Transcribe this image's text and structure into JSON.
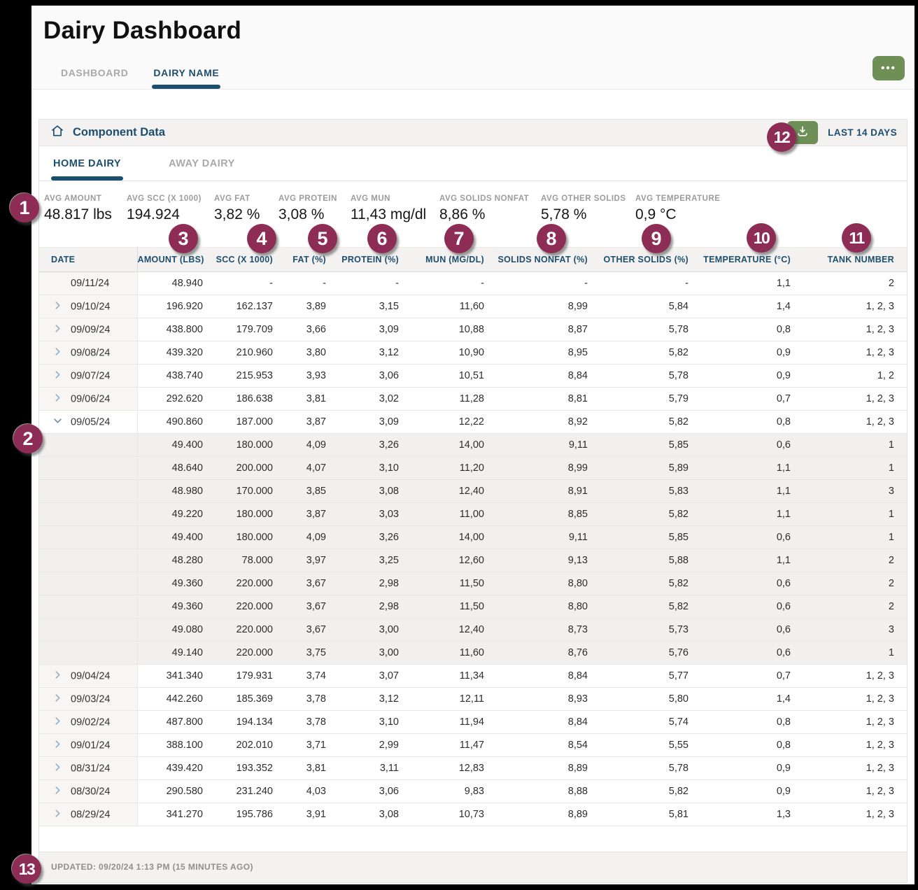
{
  "page": {
    "title": "Dairy Dashboard",
    "tabs": [
      {
        "label": "DASHBOARD",
        "active": false
      },
      {
        "label": "DAIRY NAME",
        "active": true
      }
    ],
    "more_button_label": "•••"
  },
  "panel": {
    "title": "Component Data",
    "range_label": "LAST 14 DAYS",
    "tabs": [
      {
        "label": "HOME DAIRY",
        "active": true
      },
      {
        "label": "AWAY DAIRY",
        "active": false
      }
    ],
    "stats": [
      {
        "label": "AVG AMOUNT",
        "value": "48.817 lbs"
      },
      {
        "label": "AVG SCC (X 1000)",
        "value": "194.924"
      },
      {
        "label": "AVG FAT",
        "value": "3,82 %"
      },
      {
        "label": "AVG PROTEIN",
        "value": "3,08 %"
      },
      {
        "label": "AVG MUN",
        "value": "11,43 mg/dl"
      },
      {
        "label": "AVG SOLIDS NONFAT",
        "value": "8,86 %"
      },
      {
        "label": "AVG OTHER SOLIDS",
        "value": "5,78 %"
      },
      {
        "label": "AVG TEMPERATURE",
        "value": "0,9 °C"
      }
    ],
    "table": {
      "columns": [
        "DATE",
        "AMOUNT (LBS)",
        "SCC (X 1000)",
        "FAT (%)",
        "PROTEIN (%)",
        "MUN (MG/DL)",
        "SOLIDS NONFAT (%)",
        "OTHER SOLIDS (%)",
        "TEMPERATURE (°C)",
        "TANK NUMBER"
      ],
      "rows": [
        {
          "type": "day",
          "expandable": false,
          "expanded": false,
          "date": "09/11/24",
          "cells": [
            "48.940",
            "-",
            "-",
            "-",
            "-",
            "-",
            "-",
            "1,1",
            "2"
          ]
        },
        {
          "type": "day",
          "expandable": true,
          "expanded": false,
          "date": "09/10/24",
          "cells": [
            "196.920",
            "162.137",
            "3,89",
            "3,15",
            "11,60",
            "8,99",
            "5,84",
            "1,4",
            "1, 2, 3"
          ]
        },
        {
          "type": "day",
          "expandable": true,
          "expanded": false,
          "date": "09/09/24",
          "cells": [
            "438.800",
            "179.709",
            "3,66",
            "3,09",
            "10,88",
            "8,87",
            "5,78",
            "0,8",
            "1, 2, 3"
          ]
        },
        {
          "type": "day",
          "expandable": true,
          "expanded": false,
          "date": "09/08/24",
          "cells": [
            "439.320",
            "210.960",
            "3,80",
            "3,12",
            "10,90",
            "8,95",
            "5,82",
            "0,9",
            "1, 2, 3"
          ]
        },
        {
          "type": "day",
          "expandable": true,
          "expanded": false,
          "date": "09/07/24",
          "cells": [
            "438.740",
            "215.953",
            "3,93",
            "3,06",
            "10,51",
            "8,84",
            "5,78",
            "0,9",
            "1, 2"
          ]
        },
        {
          "type": "day",
          "expandable": true,
          "expanded": false,
          "date": "09/06/24",
          "cells": [
            "292.620",
            "186.638",
            "3,81",
            "3,02",
            "11,28",
            "8,81",
            "5,79",
            "0,7",
            "1, 2, 3"
          ]
        },
        {
          "type": "day",
          "expandable": true,
          "expanded": true,
          "date": "09/05/24",
          "cells": [
            "490.860",
            "187.000",
            "3,87",
            "3,09",
            "12,22",
            "8,92",
            "5,82",
            "0,8",
            "1, 2, 3"
          ]
        },
        {
          "type": "detail",
          "expandable": false,
          "expanded": false,
          "cells": [
            "49.400",
            "180.000",
            "4,09",
            "3,26",
            "14,00",
            "9,11",
            "5,85",
            "0,6",
            "1"
          ]
        },
        {
          "type": "detail",
          "expandable": false,
          "expanded": false,
          "cells": [
            "48.640",
            "200.000",
            "4,07",
            "3,10",
            "11,20",
            "8,99",
            "5,89",
            "1,1",
            "1"
          ]
        },
        {
          "type": "detail",
          "expandable": false,
          "expanded": false,
          "cells": [
            "48.980",
            "170.000",
            "3,85",
            "3,08",
            "12,40",
            "8,91",
            "5,83",
            "1,1",
            "3"
          ]
        },
        {
          "type": "detail",
          "expandable": false,
          "expanded": false,
          "cells": [
            "49.220",
            "180.000",
            "3,87",
            "3,03",
            "11,00",
            "8,85",
            "5,82",
            "1,1",
            "1"
          ]
        },
        {
          "type": "detail",
          "expandable": false,
          "expanded": false,
          "cells": [
            "49.400",
            "180.000",
            "4,09",
            "3,26",
            "14,00",
            "9,11",
            "5,85",
            "0,6",
            "1"
          ]
        },
        {
          "type": "detail",
          "expandable": false,
          "expanded": false,
          "cells": [
            "48.280",
            "78.000",
            "3,97",
            "3,25",
            "12,60",
            "9,13",
            "5,88",
            "1,1",
            "2"
          ]
        },
        {
          "type": "detail",
          "expandable": false,
          "expanded": false,
          "cells": [
            "49.360",
            "220.000",
            "3,67",
            "2,98",
            "11,50",
            "8,80",
            "5,82",
            "0,6",
            "2"
          ]
        },
        {
          "type": "detail",
          "expandable": false,
          "expanded": false,
          "cells": [
            "49.360",
            "220.000",
            "3,67",
            "2,98",
            "11,50",
            "8,80",
            "5,82",
            "0,6",
            "2"
          ]
        },
        {
          "type": "detail",
          "expandable": false,
          "expanded": false,
          "cells": [
            "49.080",
            "220.000",
            "3,67",
            "3,00",
            "12,40",
            "8,73",
            "5,73",
            "0,6",
            "3"
          ]
        },
        {
          "type": "detail",
          "expandable": false,
          "expanded": false,
          "cells": [
            "49.140",
            "220.000",
            "3,75",
            "3,00",
            "11,60",
            "8,76",
            "5,76",
            "0,6",
            "1"
          ]
        },
        {
          "type": "day",
          "expandable": true,
          "expanded": false,
          "date": "09/04/24",
          "cells": [
            "341.340",
            "179.931",
            "3,74",
            "3,07",
            "11,34",
            "8,84",
            "5,77",
            "0,7",
            "1, 2, 3"
          ]
        },
        {
          "type": "day",
          "expandable": true,
          "expanded": false,
          "date": "09/03/24",
          "cells": [
            "442.260",
            "185.369",
            "3,78",
            "3,12",
            "12,11",
            "8,93",
            "5,80",
            "1,4",
            "1, 2, 3"
          ]
        },
        {
          "type": "day",
          "expandable": true,
          "expanded": false,
          "date": "09/02/24",
          "cells": [
            "487.800",
            "194.134",
            "3,78",
            "3,10",
            "11,94",
            "8,84",
            "5,74",
            "0,8",
            "1, 2, 3"
          ]
        },
        {
          "type": "day",
          "expandable": true,
          "expanded": false,
          "date": "09/01/24",
          "cells": [
            "388.100",
            "202.010",
            "3,71",
            "2,99",
            "11,47",
            "8,54",
            "5,55",
            "0,8",
            "1, 2, 3"
          ]
        },
        {
          "type": "day",
          "expandable": true,
          "expanded": false,
          "date": "08/31/24",
          "cells": [
            "439.420",
            "193.352",
            "3,81",
            "3,11",
            "12,83",
            "8,89",
            "5,78",
            "0,9",
            "1, 2, 3"
          ]
        },
        {
          "type": "day",
          "expandable": true,
          "expanded": false,
          "date": "08/30/24",
          "cells": [
            "290.580",
            "231.240",
            "4,03",
            "3,06",
            "9,83",
            "8,88",
            "5,82",
            "0,9",
            "1, 2, 3"
          ]
        },
        {
          "type": "day",
          "expandable": true,
          "expanded": false,
          "date": "08/29/24",
          "cells": [
            "341.270",
            "195.786",
            "3,91",
            "3,08",
            "10,73",
            "8,89",
            "5,81",
            "1,3",
            "1, 2, 3"
          ]
        }
      ]
    },
    "footer": {
      "updated": "UPDATED: 09/20/24 1:13 PM (15 MINUTES AGO)"
    }
  },
  "annotations": [
    "1",
    "2",
    "3",
    "4",
    "5",
    "6",
    "7",
    "8",
    "9",
    "10",
    "11",
    "12",
    "13"
  ],
  "colors": {
    "primary_navy": "#1d4e6e",
    "accent_green": "#6e8f55",
    "badge_maroon": "#8d2c55"
  }
}
